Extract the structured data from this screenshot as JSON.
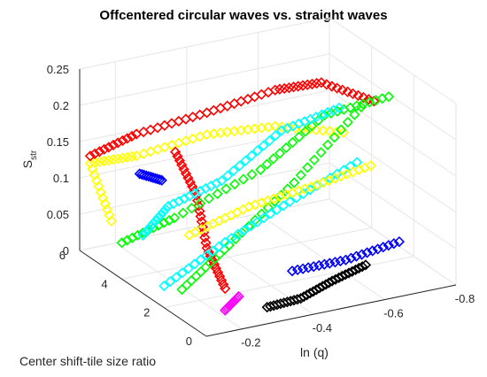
{
  "chart_data": {
    "type": "scatter",
    "plot_style": "3d",
    "title": "Offcentered circular waves vs. straight waves",
    "xlabel": "ln (q)",
    "ylabel": "Center shift-tile size ratio",
    "zlabel_main": "S",
    "zlabel_sub": "str",
    "xlim": [
      -0.1,
      -0.8
    ],
    "ylim": [
      0,
      6
    ],
    "zlim": [
      0,
      0.25
    ],
    "xticks": [
      "-0.2",
      "-0.4",
      "-0.6",
      "-0.8"
    ],
    "yticks": [
      "0",
      "2",
      "4",
      "6"
    ],
    "zticks": [
      "0",
      "0.05",
      "0.1",
      "0.15",
      "0.2",
      "0.25"
    ],
    "grid": true,
    "legend": "none",
    "colors": {
      "red": "#ff0000",
      "green": "#00ff00",
      "yellow": "#ffff00",
      "cyan": "#00ffff",
      "blue": "#0000ff",
      "magenta": "#ff00ff",
      "black": "#000000"
    },
    "series": [
      {
        "color": "yellow",
        "x": [
          -0.1,
          -0.1,
          -0.2,
          -0.35,
          -0.5,
          -0.65
        ],
        "y": [
          4.5,
          5.5,
          5.0,
          4.2,
          3.5,
          2.8
        ],
        "z": [
          0.07,
          0.13,
          0.14,
          0.17,
          0.18,
          0.17
        ]
      },
      {
        "color": "red",
        "x": [
          -0.1,
          -0.2,
          -0.35,
          -0.5,
          -0.6,
          -0.7
        ],
        "y": [
          5.5,
          5.0,
          4.2,
          3.5,
          3.0,
          2.2
        ],
        "z": [
          0.14,
          0.17,
          0.2,
          0.23,
          0.24,
          0.22
        ]
      },
      {
        "color": "red",
        "x": [
          -0.25,
          -0.25,
          -0.22,
          -0.2
        ],
        "y": [
          4.0,
          3.0,
          2.0,
          0.8
        ],
        "z": [
          0.16,
          0.12,
          0.07,
          0.04
        ]
      },
      {
        "color": "green",
        "x": [
          -0.1,
          -0.2,
          -0.4,
          -0.55,
          -0.7
        ],
        "y": [
          4.0,
          3.2,
          2.5,
          2.0,
          1.5
        ],
        "z": [
          0.05,
          0.09,
          0.15,
          0.22,
          0.24
        ]
      },
      {
        "color": "green",
        "x": [
          -0.15,
          -0.3,
          -0.5,
          -0.7
        ],
        "y": [
          2.0,
          2.3,
          2.6,
          2.8
        ],
        "z": [
          0.02,
          0.06,
          0.12,
          0.2
        ]
      },
      {
        "color": "cyan",
        "x": [
          -0.1,
          -0.2,
          -0.35,
          -0.5,
          -0.65
        ],
        "y": [
          3.0,
          3.5,
          3.5,
          3.2,
          3.0
        ],
        "z": [
          0.08,
          0.1,
          0.12,
          0.18,
          0.2
        ]
      },
      {
        "color": "cyan",
        "x": [
          -0.1,
          -0.3,
          -0.5,
          -0.7
        ],
        "y": [
          2.0,
          2.5,
          2.8,
          3.0
        ],
        "z": [
          0.03,
          0.06,
          0.09,
          0.12
        ]
      },
      {
        "color": "yellow",
        "x": [
          -0.2,
          -0.35,
          -0.5,
          -0.65
        ],
        "y": [
          2.5,
          2.2,
          1.8,
          1.5
        ],
        "z": [
          0.08,
          0.11,
          0.13,
          0.15
        ]
      },
      {
        "color": "blue",
        "x": [
          -0.4,
          -0.55,
          -0.7
        ],
        "y": [
          1.0,
          1.0,
          1.0
        ],
        "z": [
          0.04,
          0.04,
          0.05
        ]
      },
      {
        "color": "blue",
        "x": [
          -0.15,
          -0.2
        ],
        "y": [
          4.0,
          3.8
        ],
        "z": [
          0.14,
          0.13
        ]
      },
      {
        "color": "black",
        "x": [
          -0.3,
          -0.4,
          -0.5,
          -0.6
        ],
        "y": [
          0.5,
          0.6,
          0.8,
          0.9
        ],
        "z": [
          0.01,
          0.01,
          0.02,
          0.03
        ]
      },
      {
        "color": "magenta",
        "x": [
          -0.2,
          -0.25
        ],
        "y": [
          0.8,
          1.0
        ],
        "z": [
          0.01,
          0.02
        ]
      }
    ]
  }
}
